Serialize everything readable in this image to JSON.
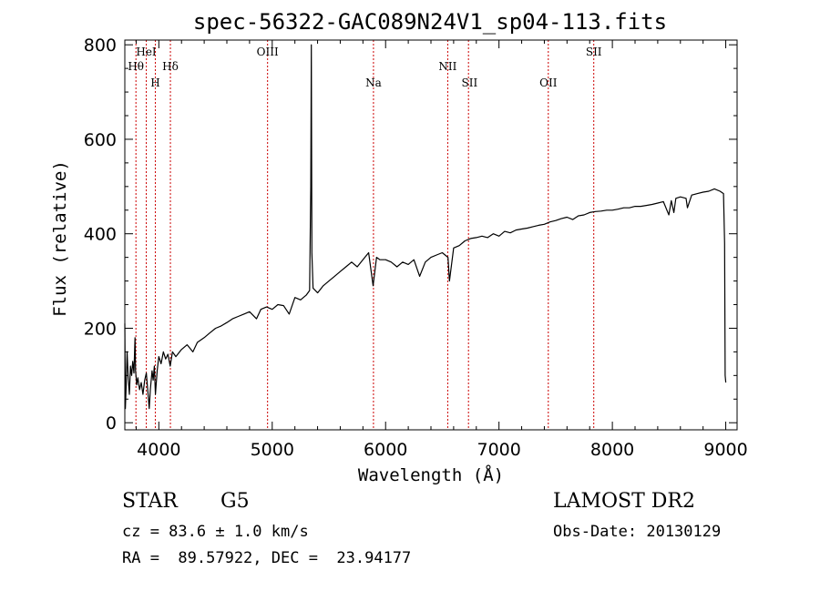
{
  "chart_data": {
    "type": "line",
    "title": "spec-56322-GAC089N24V1_sp04-113.fits",
    "xlabel": "Wavelength (Å)",
    "ylabel": "Flux (relative)",
    "xlim": [
      3700,
      9100
    ],
    "ylim": [
      -15,
      810
    ],
    "xticks": [
      4000,
      5000,
      6000,
      7000,
      8000,
      9000
    ],
    "yticks": [
      0,
      200,
      400,
      600,
      800
    ],
    "grid": false,
    "series": [
      {
        "points": [
          [
            3700,
            210
          ],
          [
            3705,
            30
          ],
          [
            3712,
            80
          ],
          [
            3720,
            150
          ],
          [
            3730,
            95
          ],
          [
            3740,
            60
          ],
          [
            3750,
            120
          ],
          [
            3760,
            100
          ],
          [
            3770,
            130
          ],
          [
            3780,
            105
          ],
          [
            3790,
            180
          ],
          [
            3795,
            110
          ],
          [
            3805,
            80
          ],
          [
            3815,
            95
          ],
          [
            3830,
            70
          ],
          [
            3845,
            85
          ],
          [
            3860,
            60
          ],
          [
            3875,
            90
          ],
          [
            3890,
            105
          ],
          [
            3900,
            75
          ],
          [
            3915,
            30
          ],
          [
            3925,
            70
          ],
          [
            3940,
            110
          ],
          [
            3950,
            90
          ],
          [
            3960,
            120
          ],
          [
            3970,
            60
          ],
          [
            3985,
            110
          ],
          [
            4000,
            140
          ],
          [
            4020,
            125
          ],
          [
            4040,
            150
          ],
          [
            4060,
            135
          ],
          [
            4080,
            145
          ],
          [
            4100,
            120
          ],
          [
            4120,
            150
          ],
          [
            4150,
            140
          ],
          [
            4200,
            155
          ],
          [
            4250,
            165
          ],
          [
            4300,
            150
          ],
          [
            4340,
            170
          ],
          [
            4400,
            180
          ],
          [
            4450,
            190
          ],
          [
            4500,
            200
          ],
          [
            4550,
            205
          ],
          [
            4600,
            212
          ],
          [
            4650,
            220
          ],
          [
            4700,
            225
          ],
          [
            4750,
            230
          ],
          [
            4800,
            235
          ],
          [
            4861,
            220
          ],
          [
            4900,
            240
          ],
          [
            4950,
            245
          ],
          [
            5000,
            240
          ],
          [
            5050,
            250
          ],
          [
            5100,
            248
          ],
          [
            5150,
            230
          ],
          [
            5200,
            265
          ],
          [
            5250,
            260
          ],
          [
            5300,
            270
          ],
          [
            5330,
            280
          ],
          [
            5340,
            500
          ],
          [
            5345,
            800
          ],
          [
            5350,
            360
          ],
          [
            5360,
            285
          ],
          [
            5400,
            275
          ],
          [
            5450,
            290
          ],
          [
            5500,
            300
          ],
          [
            5550,
            310
          ],
          [
            5600,
            320
          ],
          [
            5650,
            330
          ],
          [
            5700,
            340
          ],
          [
            5750,
            330
          ],
          [
            5800,
            345
          ],
          [
            5850,
            360
          ],
          [
            5890,
            290
          ],
          [
            5920,
            350
          ],
          [
            5950,
            345
          ],
          [
            6000,
            345
          ],
          [
            6050,
            340
          ],
          [
            6100,
            330
          ],
          [
            6150,
            340
          ],
          [
            6200,
            335
          ],
          [
            6250,
            345
          ],
          [
            6300,
            310
          ],
          [
            6350,
            340
          ],
          [
            6400,
            350
          ],
          [
            6450,
            355
          ],
          [
            6500,
            360
          ],
          [
            6550,
            350
          ],
          [
            6563,
            300
          ],
          [
            6600,
            370
          ],
          [
            6650,
            375
          ],
          [
            6700,
            385
          ],
          [
            6750,
            390
          ],
          [
            6800,
            392
          ],
          [
            6850,
            395
          ],
          [
            6900,
            392
          ],
          [
            6950,
            400
          ],
          [
            7000,
            395
          ],
          [
            7050,
            405
          ],
          [
            7100,
            402
          ],
          [
            7150,
            408
          ],
          [
            7200,
            410
          ],
          [
            7250,
            412
          ],
          [
            7300,
            415
          ],
          [
            7350,
            418
          ],
          [
            7400,
            420
          ],
          [
            7450,
            425
          ],
          [
            7500,
            428
          ],
          [
            7550,
            432
          ],
          [
            7600,
            435
          ],
          [
            7650,
            430
          ],
          [
            7700,
            438
          ],
          [
            7750,
            440
          ],
          [
            7800,
            445
          ],
          [
            7850,
            447
          ],
          [
            7900,
            448
          ],
          [
            7950,
            450
          ],
          [
            8000,
            450
          ],
          [
            8050,
            452
          ],
          [
            8100,
            455
          ],
          [
            8150,
            455
          ],
          [
            8200,
            458
          ],
          [
            8250,
            458
          ],
          [
            8300,
            460
          ],
          [
            8350,
            462
          ],
          [
            8400,
            465
          ],
          [
            8450,
            468
          ],
          [
            8498,
            440
          ],
          [
            8520,
            470
          ],
          [
            8542,
            445
          ],
          [
            8560,
            475
          ],
          [
            8600,
            478
          ],
          [
            8650,
            475
          ],
          [
            8662,
            455
          ],
          [
            8700,
            482
          ],
          [
            8750,
            485
          ],
          [
            8800,
            488
          ],
          [
            8850,
            490
          ],
          [
            8900,
            495
          ],
          [
            8950,
            490
          ],
          [
            8980,
            485
          ],
          [
            8990,
            380
          ],
          [
            8995,
            100
          ],
          [
            9000,
            85
          ]
        ]
      }
    ],
    "lines": [
      {
        "name": "Hθ",
        "x": 3798,
        "tier": "top-2",
        "anchor": "middle"
      },
      {
        "name": "HeI",
        "x": 3889,
        "tier": "top-1",
        "anchor": "middle"
      },
      {
        "name": "H",
        "x": 3969,
        "tier": "low",
        "anchor": "middle"
      },
      {
        "name": "Hδ",
        "x": 4102,
        "tier": "top-2",
        "anchor": "middle"
      },
      {
        "name": "OIII",
        "x": 4959,
        "tier": "top-1",
        "anchor": "middle"
      },
      {
        "name": "Na",
        "x": 5893,
        "tier": "low",
        "anchor": "middle"
      },
      {
        "name": "NII",
        "x": 6548,
        "tier": "top-2",
        "anchor": "end"
      },
      {
        "name": "SII",
        "x": 6731,
        "tier": "low",
        "anchor": "end"
      },
      {
        "name": "OII",
        "x": 7435,
        "tier": "low",
        "anchor": "middle"
      },
      {
        "name": "SII",
        "x": 7836,
        "tier": "top-1",
        "anchor": "middle"
      }
    ]
  },
  "info": {
    "object_class": "STAR",
    "subclass": "G5",
    "velocity": "cz = 83.6 ± 1.0 km/s",
    "coords": "RA =  89.57922, DEC =  23.94177",
    "survey": "LAMOST DR2",
    "obs_date": "Obs-Date: 20130129"
  },
  "colors": {
    "spectrum": "#000000",
    "line_markers": "#cc0000"
  }
}
